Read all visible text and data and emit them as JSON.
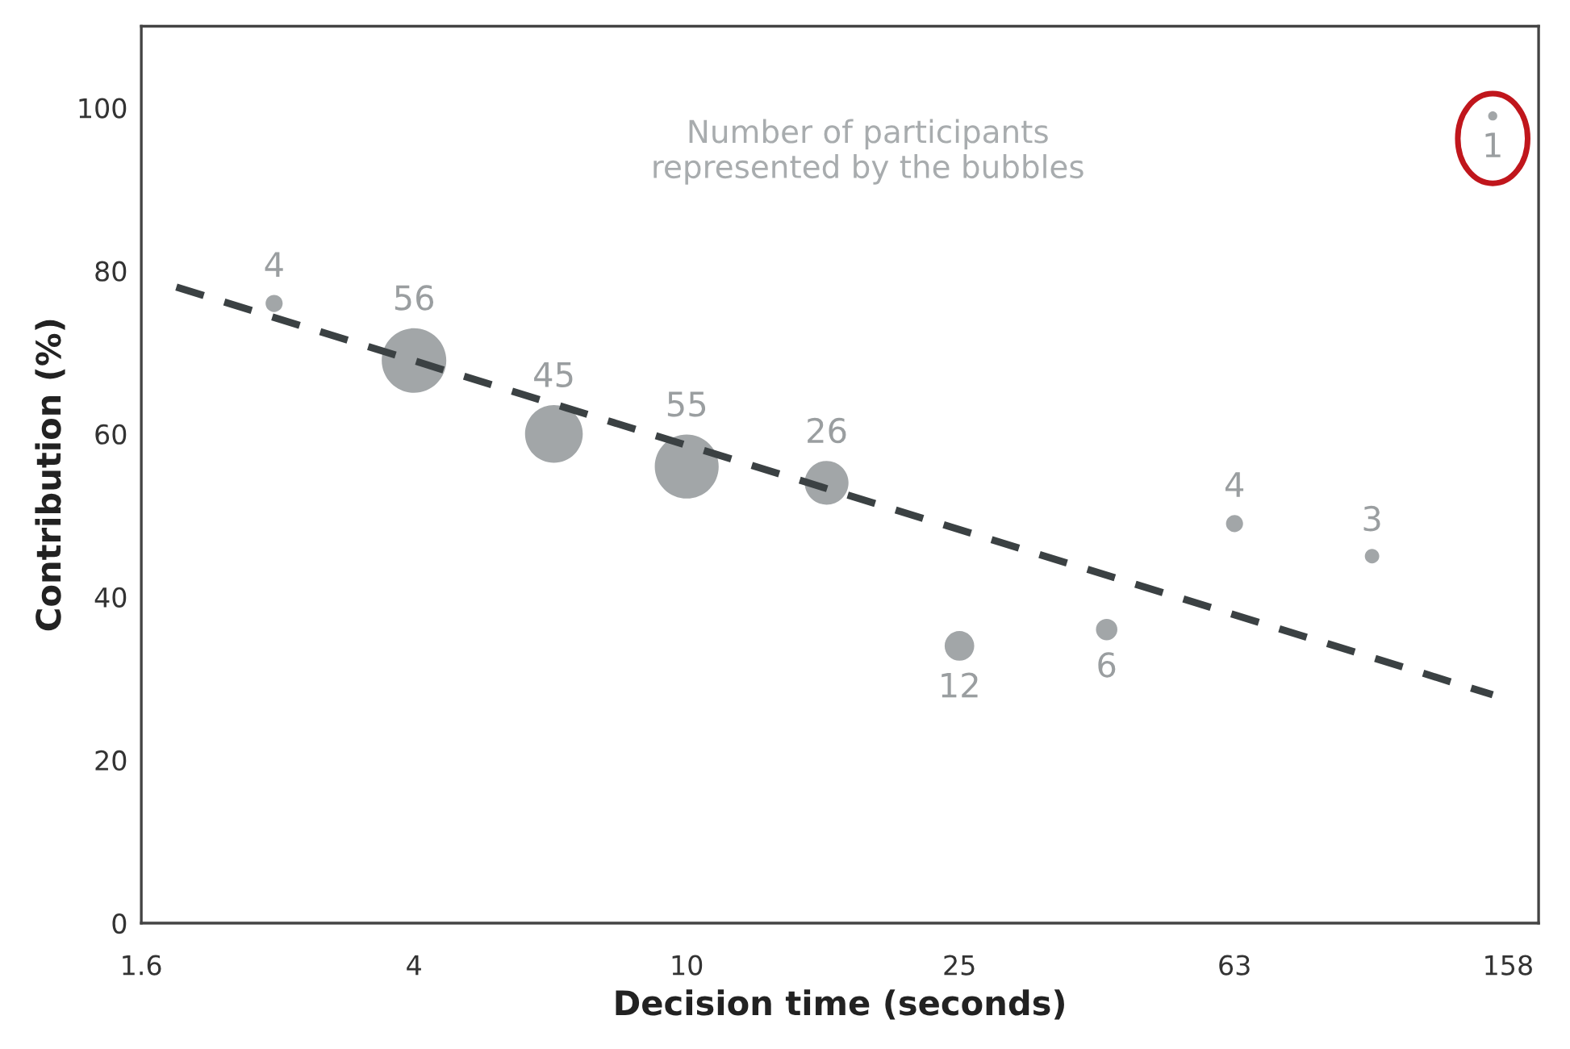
{
  "chart_data": {
    "type": "bubble",
    "xlabel": "Decision time (seconds)",
    "ylabel": "Contribution (%)",
    "log": "x",
    "xlim": [
      1.6,
      175
    ],
    "xticks": [
      1.6,
      4,
      10,
      25,
      63,
      158
    ],
    "ylim": [
      0,
      110
    ],
    "yticks": [
      0,
      20,
      40,
      60,
      80,
      100
    ],
    "grid": false,
    "legend": false,
    "series": [
      {
        "color": "#a2a6a8",
        "marker": "circle",
        "x": [
          2.5,
          4,
          6.4,
          10,
          16,
          25,
          41,
          63,
          100,
          150
        ],
        "values": [
          76,
          69,
          60,
          56,
          54,
          34,
          36,
          49,
          45,
          99
        ],
        "sizes": [
          0.07,
          1,
          0.8,
          0.98,
          0.46,
          0.21,
          0.11,
          0.07,
          0.05,
          0.02
        ]
      },
      {
        "type": "line",
        "color": "#3b4143",
        "line_style": "dashed",
        "x": [
          1.8,
          150
        ],
        "values": [
          78,
          28
        ]
      }
    ],
    "annotations": [
      "Number of participants\nrepresented by the bubbles",
      {
        "text": "4",
        "x": 2.5,
        "y": 76
      },
      {
        "text": "56",
        "x": 4,
        "y": 69
      },
      {
        "text": "45",
        "x": 6.4,
        "y": 60
      },
      {
        "text": "55",
        "x": 10,
        "y": 56
      },
      {
        "text": "26",
        "x": 16,
        "y": 54
      },
      {
        "text": "12",
        "x": 25,
        "y": 34
      },
      {
        "text": "6",
        "x": 41,
        "y": 36
      },
      {
        "text": "4",
        "x": 63,
        "y": 49
      },
      {
        "text": "3",
        "x": 100,
        "y": 45
      },
      {
        "text": "1",
        "x": 150,
        "y": 99
      }
    ]
  }
}
